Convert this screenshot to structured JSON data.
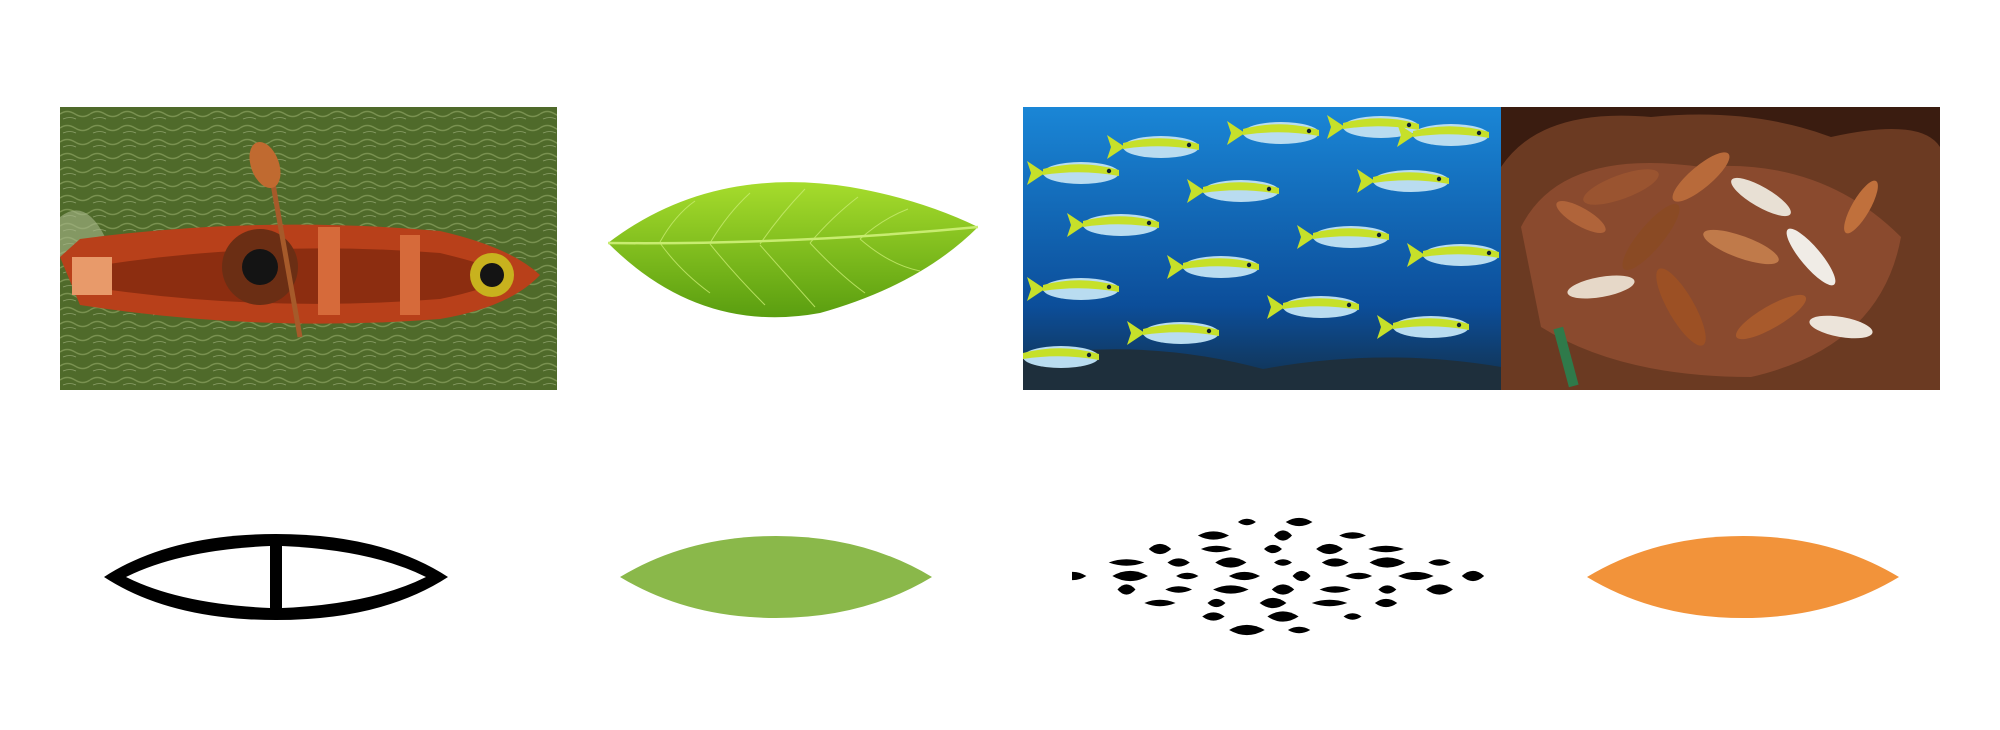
{
  "panels": [
    {
      "id": "photo-canoe",
      "icon": "canoe-photo"
    },
    {
      "id": "photo-leaf",
      "icon": "leaf-photo"
    },
    {
      "id": "photo-fish",
      "icon": "fish-school-photo"
    },
    {
      "id": "photo-nuts",
      "icon": "brazil-nuts-photo"
    },
    {
      "id": "icon-canoe",
      "icon": "canoe-outline-icon"
    },
    {
      "id": "icon-leaf",
      "icon": "leaf-shape-icon"
    },
    {
      "id": "icon-fish",
      "icon": "fish-school-icon"
    },
    {
      "id": "icon-seed",
      "icon": "seed-shape-icon"
    }
  ],
  "colors": {
    "river": "#4f6a2a",
    "canoe_wood": "#b8401a",
    "leaf_photo": "#7cc41c",
    "ocean": "#1466b8",
    "fish_yellow": "#c6e02a",
    "nut_brown": "#8a4a24",
    "hands": "#6b3a22",
    "icon_black": "#000000",
    "icon_green": "#8ab84a",
    "icon_orange": "#f2933a"
  }
}
